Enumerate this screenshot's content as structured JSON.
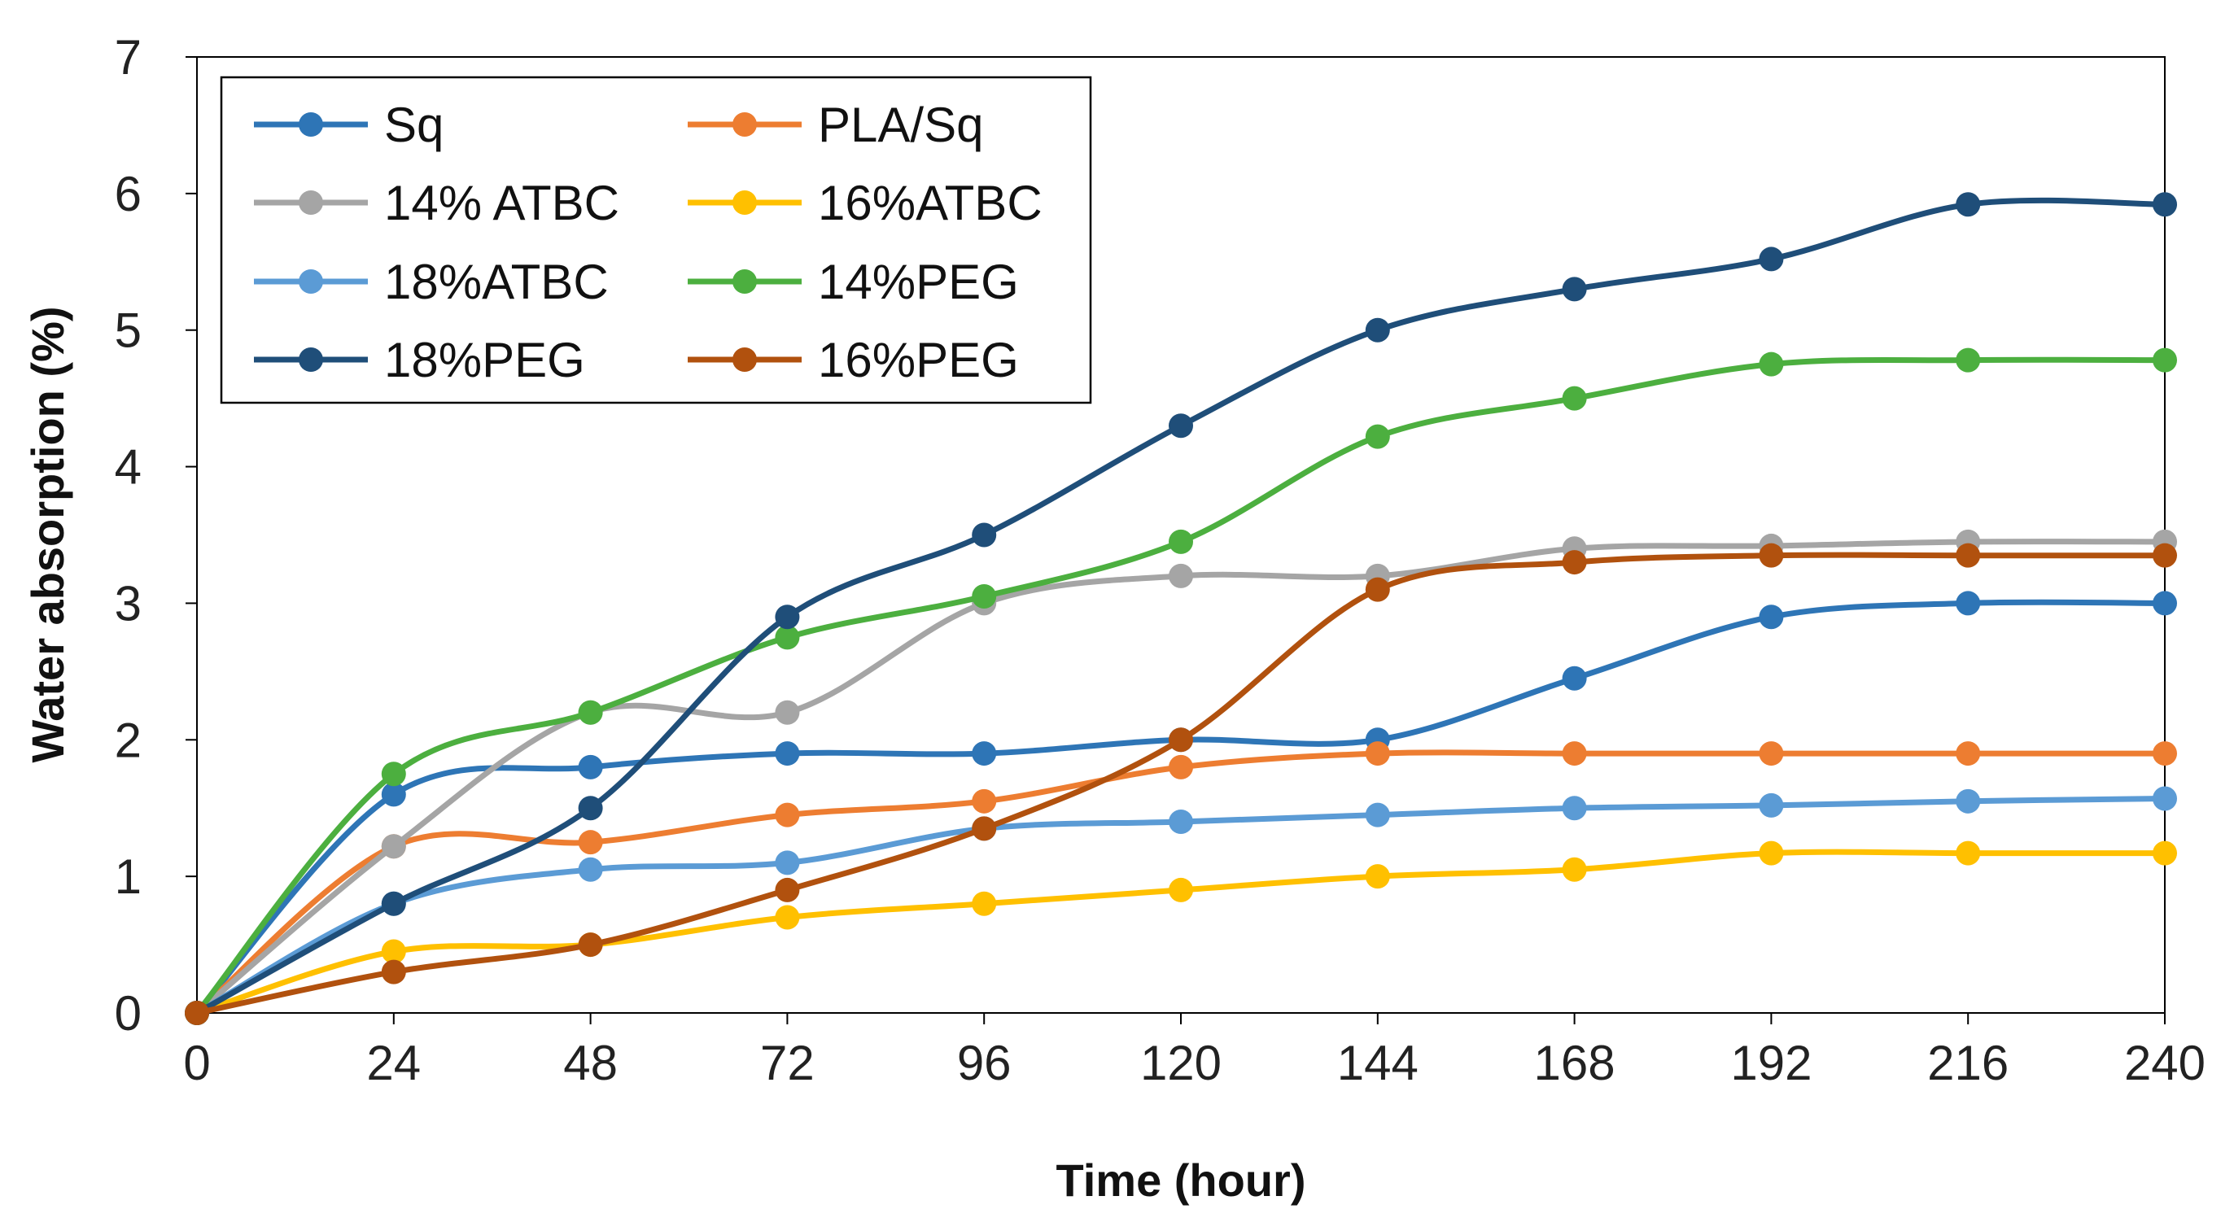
{
  "chart_data": {
    "type": "line",
    "title": "",
    "xlabel": "Time (hour)",
    "ylabel": "Water absorption (%)",
    "x": [
      0,
      24,
      48,
      72,
      96,
      120,
      144,
      168,
      192,
      216,
      240
    ],
    "xlim": [
      0,
      240
    ],
    "ylim": [
      0,
      7
    ],
    "xticks": [
      "0",
      "24",
      "48",
      "72",
      "96",
      "120",
      "144",
      "168",
      "192",
      "216",
      "240"
    ],
    "yticks": [
      "0",
      "1",
      "2",
      "3",
      "4",
      "5",
      "6",
      "7"
    ],
    "grid": false,
    "legend_position": "top-left",
    "series": [
      {
        "name": "Sq",
        "color": "#2E75B6",
        "values": [
          0,
          1.6,
          1.8,
          1.9,
          1.9,
          2.0,
          2.0,
          2.45,
          2.9,
          3.0,
          3.0
        ]
      },
      {
        "name": "PLA/Sq",
        "color": "#ED7D31",
        "values": [
          0,
          1.22,
          1.25,
          1.45,
          1.55,
          1.8,
          1.9,
          1.9,
          1.9,
          1.9,
          1.9
        ]
      },
      {
        "name": "14% ATBC",
        "color": "#A5A5A5",
        "values": [
          0,
          1.22,
          2.2,
          2.2,
          3.0,
          3.2,
          3.2,
          3.4,
          3.42,
          3.45,
          3.45
        ]
      },
      {
        "name": "16%ATBC",
        "color": "#FFC000",
        "values": [
          0,
          0.45,
          0.5,
          0.7,
          0.8,
          0.9,
          1.0,
          1.05,
          1.17,
          1.17,
          1.17
        ]
      },
      {
        "name": "18%ATBC",
        "color": "#5B9BD5",
        "values": [
          0,
          0.8,
          1.05,
          1.1,
          1.35,
          1.4,
          1.45,
          1.5,
          1.52,
          1.55,
          1.57
        ]
      },
      {
        "name": "14%PEG",
        "color": "#4CAF3F",
        "values": [
          0,
          1.75,
          2.2,
          2.75,
          3.05,
          3.45,
          4.22,
          4.5,
          4.75,
          4.78,
          4.78
        ]
      },
      {
        "name": "18%PEG",
        "color": "#1F4E79",
        "values": [
          0,
          0.8,
          1.5,
          2.9,
          3.5,
          4.3,
          5.0,
          5.3,
          5.52,
          5.92,
          5.92
        ]
      },
      {
        "name": "16%PEG",
        "color": "#B1510E",
        "values": [
          0,
          0.3,
          0.5,
          0.9,
          1.35,
          2.0,
          3.1,
          3.3,
          3.35,
          3.35,
          3.35
        ]
      }
    ]
  }
}
